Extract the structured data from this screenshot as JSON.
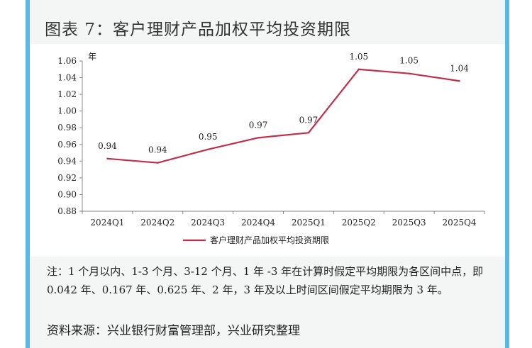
{
  "figure": {
    "title": "图表 7：客户理财产品加权平均投资期限",
    "note": "注：1 个月以内、1-3 个月、3-12 个月、1 年 -3 年在计算时假定平均期限为各区间中点，即 0.042 年、0.167 年、0.625 年、2 年，3 年及以上时间区间假定平均期限为 3 年。",
    "source": "资料来源：兴业银行财富管理部，兴业研究整理"
  },
  "chart_data": {
    "type": "line",
    "ylabel": "年",
    "categories": [
      "2024Q1",
      "2024Q2",
      "2024Q3",
      "2024Q4",
      "2025Q1",
      "2025Q2",
      "2025Q3",
      "2025Q4"
    ],
    "series": [
      {
        "name": "客户理财产品加权平均投资期限",
        "values": [
          0.943,
          0.938,
          0.954,
          0.968,
          0.974,
          1.05,
          1.045,
          1.036
        ],
        "labels": [
          "0.94",
          "0.94",
          "0.95",
          "0.97",
          "0.97",
          "1.05",
          "1.05",
          "1.04"
        ],
        "color": "#c0304a"
      }
    ],
    "ylim": [
      0.88,
      1.06
    ],
    "yticks": [
      "0.88",
      "0.90",
      "0.92",
      "0.94",
      "0.96",
      "0.98",
      "1.00",
      "1.02",
      "1.04",
      "1.06"
    ],
    "grid": false,
    "legend": "bottom"
  }
}
